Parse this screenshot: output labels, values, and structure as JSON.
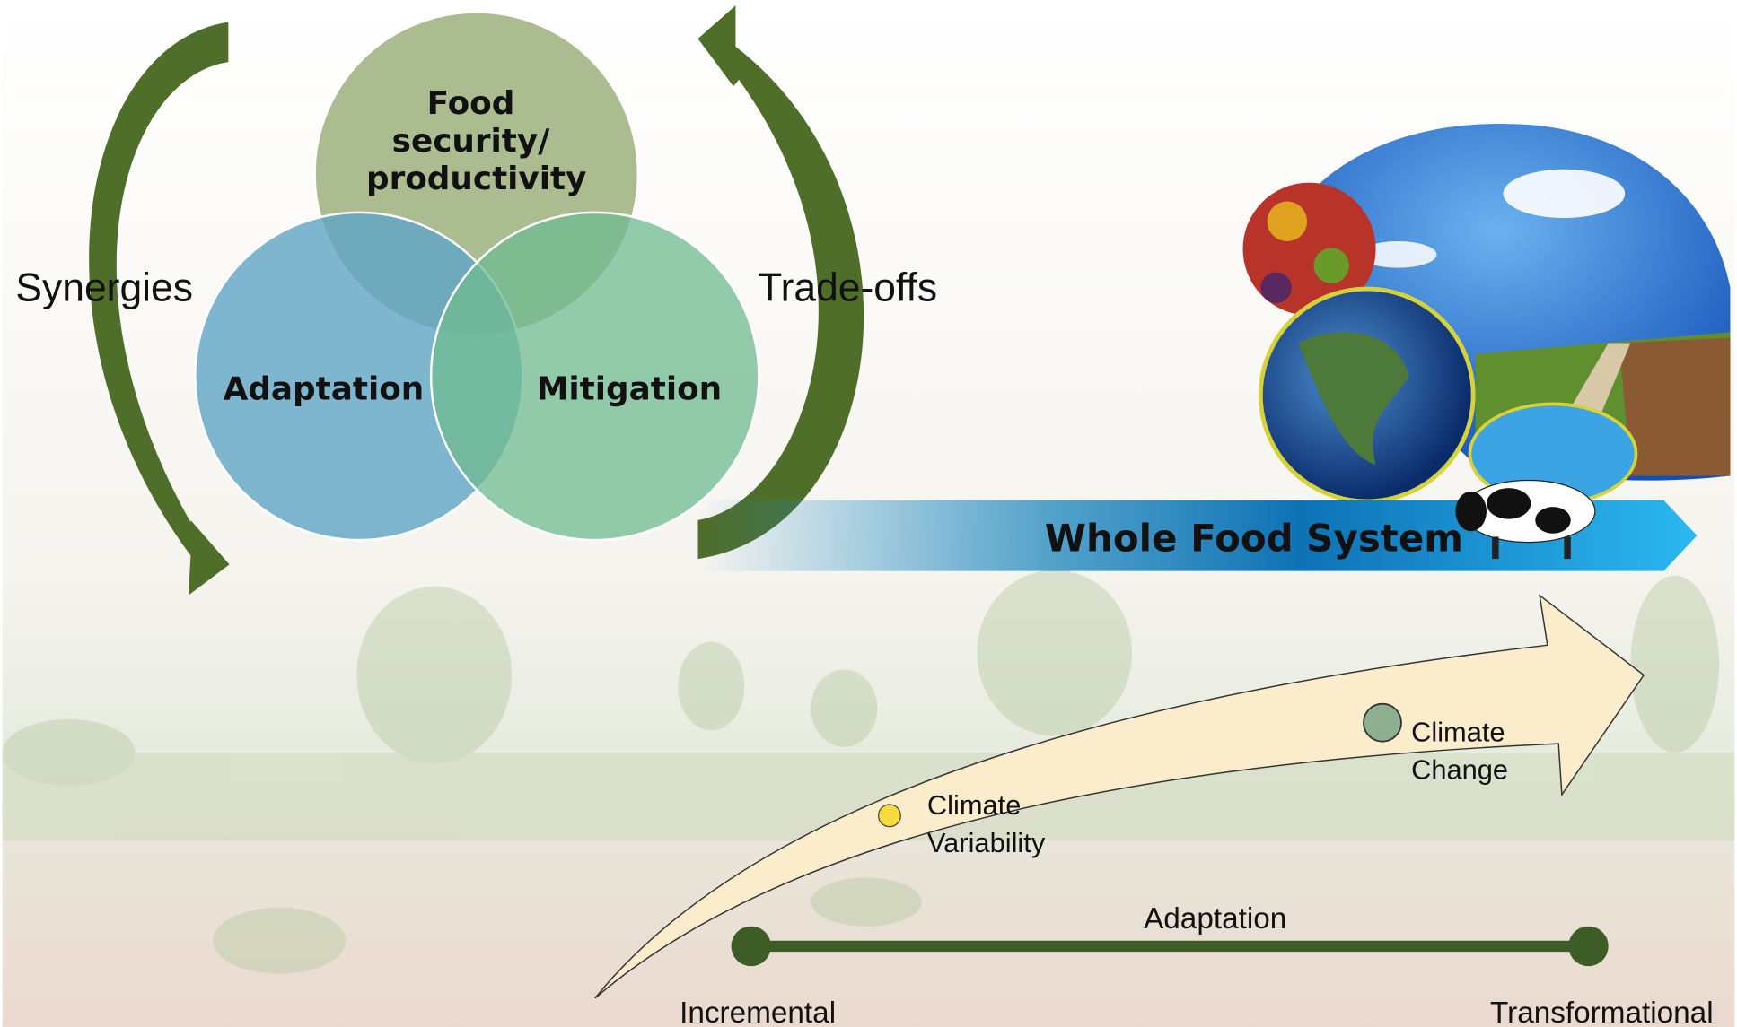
{
  "venn": {
    "top": [
      "Food",
      "security/",
      "productivity"
    ],
    "left": "Adaptation",
    "right": "Mitigation"
  },
  "arrows": {
    "left": "Synergies",
    "right": "Trade-offs"
  },
  "banner": "Whole Food System",
  "pathway": {
    "variability": [
      "Climate",
      "Variability"
    ],
    "change": [
      "Climate",
      "Change"
    ]
  },
  "scale": {
    "title": "Adaptation",
    "start": "Incremental",
    "end": "Transformational"
  }
}
